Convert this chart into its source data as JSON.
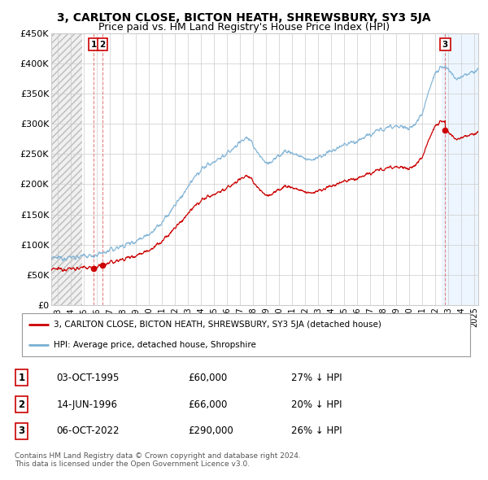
{
  "title": "3, CARLTON CLOSE, BICTON HEATH, SHREWSBURY, SY3 5JA",
  "subtitle": "Price paid vs. HM Land Registry's House Price Index (HPI)",
  "xlim_start": 1992.5,
  "xlim_end": 2025.3,
  "ylim_min": 0,
  "ylim_max": 450000,
  "yticks": [
    0,
    50000,
    100000,
    150000,
    200000,
    250000,
    300000,
    350000,
    400000,
    450000
  ],
  "ytick_labels": [
    "£0",
    "£50K",
    "£100K",
    "£150K",
    "£200K",
    "£250K",
    "£300K",
    "£350K",
    "£400K",
    "£450K"
  ],
  "xticks": [
    1993,
    1994,
    1995,
    1996,
    1997,
    1998,
    1999,
    2000,
    2001,
    2002,
    2003,
    2004,
    2005,
    2006,
    2007,
    2008,
    2009,
    2010,
    2011,
    2012,
    2013,
    2014,
    2015,
    2016,
    2017,
    2018,
    2019,
    2020,
    2021,
    2022,
    2023,
    2024,
    2025
  ],
  "sale_dates": [
    1995.75,
    1996.45,
    2022.76
  ],
  "sale_prices": [
    60000,
    66000,
    290000
  ],
  "sale_labels": [
    "1",
    "2",
    "3"
  ],
  "red_line_color": "#cc0000",
  "hpi_color": "#7ab0d4",
  "sale_dot_color": "#cc0000",
  "grid_color": "#cccccc",
  "legend_label_red": "3, CARLTON CLOSE, BICTON HEATH, SHREWSBURY, SY3 5JA (detached house)",
  "legend_label_blue": "HPI: Average price, detached house, Shropshire",
  "table_rows": [
    [
      "1",
      "03-OCT-1995",
      "£60,000",
      "27% ↓ HPI"
    ],
    [
      "2",
      "14-JUN-1996",
      "£66,000",
      "20% ↓ HPI"
    ],
    [
      "3",
      "06-OCT-2022",
      "£290,000",
      "26% ↓ HPI"
    ]
  ],
  "footer_text": "Contains HM Land Registry data © Crown copyright and database right 2024.\nThis data is licensed under the Open Government Licence v3.0.",
  "title_fontsize": 10,
  "subtitle_fontsize": 9,
  "hatch_left_start": 1992.5,
  "hatch_left_end": 1994.9,
  "sale3_shade_start": 2022.5,
  "sale3_shade_end": 2025.3
}
